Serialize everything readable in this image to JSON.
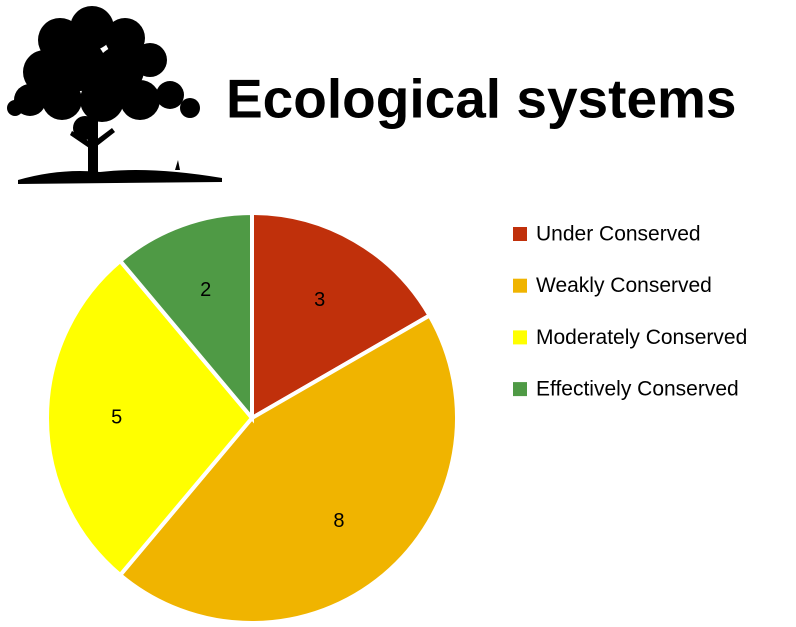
{
  "chart_data": {
    "type": "pie",
    "title": "Ecological systems",
    "categories": [
      "Under Conserved",
      "Weakly Conserved",
      "Moderately Conserved",
      "Effectively Conserved"
    ],
    "values": [
      3,
      8,
      5,
      2
    ],
    "colors": [
      "#c0300b",
      "#f0b400",
      "#ffff00",
      "#4f9a45"
    ],
    "legend": "right"
  }
}
